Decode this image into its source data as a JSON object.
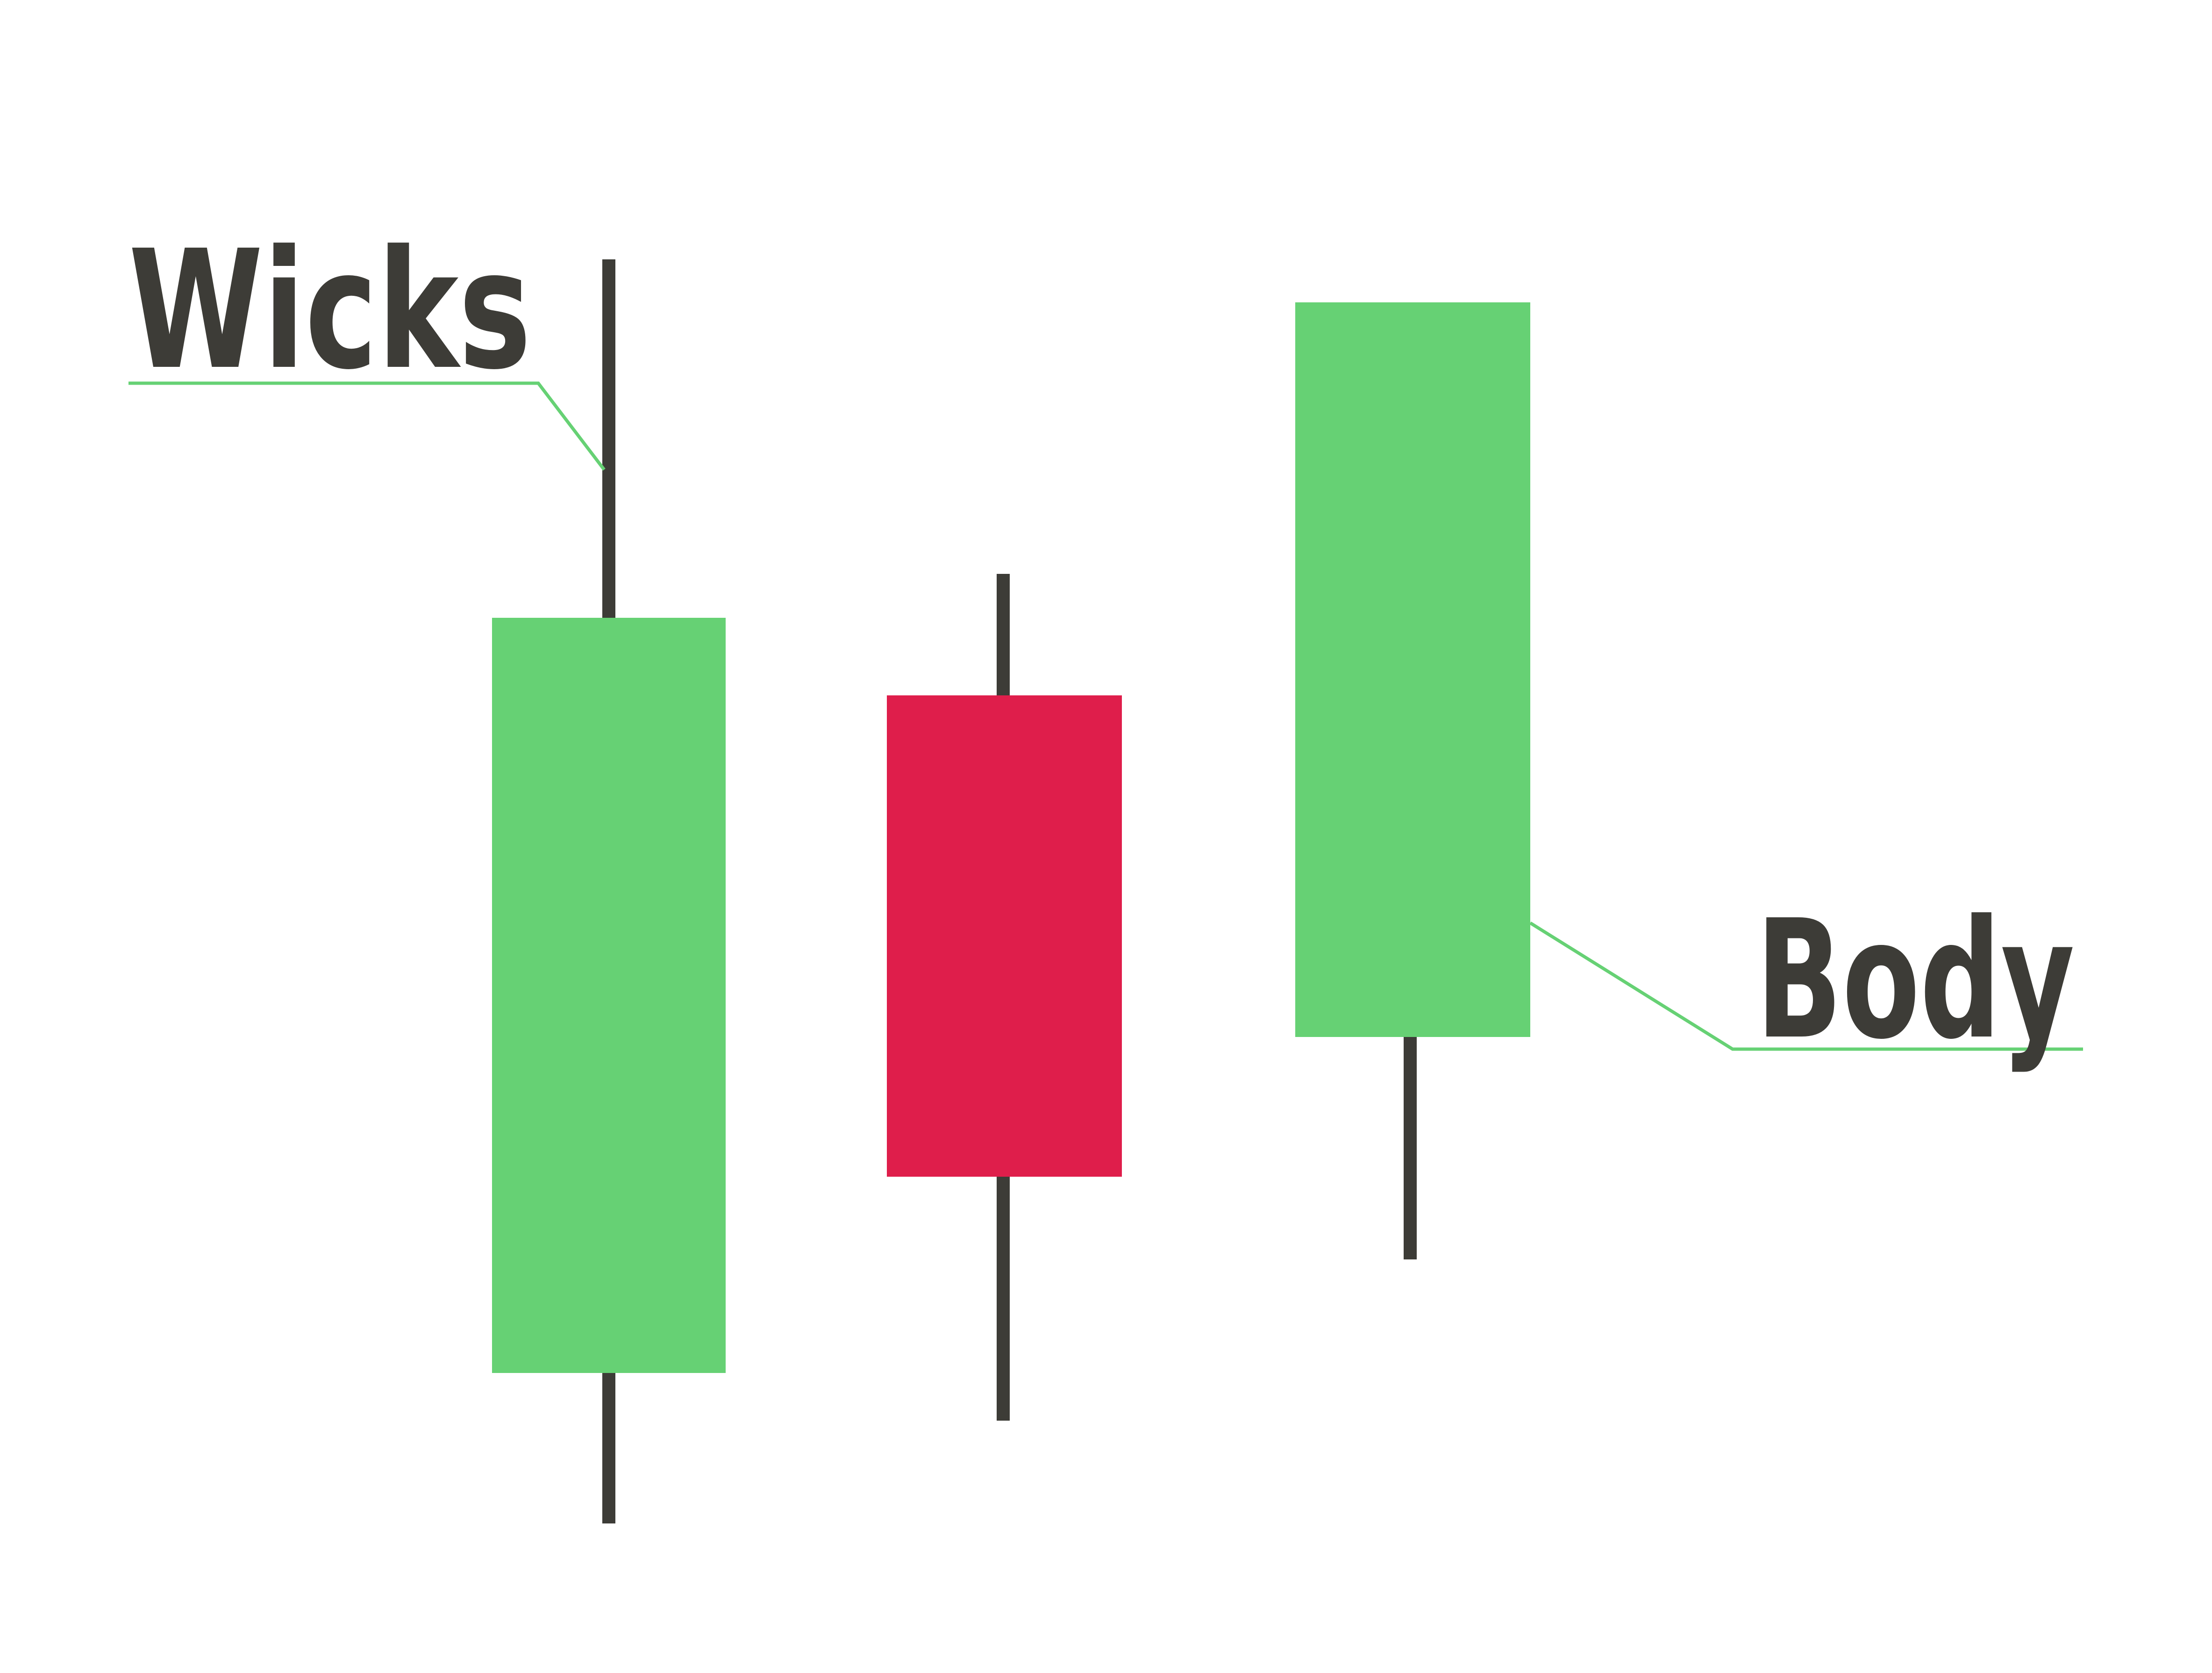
{
  "labels": {
    "wicks": "Wicks",
    "body": "Body"
  },
  "colors": {
    "bullish": "#66d174",
    "bearish": "#df1e4b",
    "wick": "#3d3c37",
    "text": "#3d3c37",
    "callout_line": "#66d174",
    "background": "#ffffff"
  },
  "candles": [
    {
      "name": "candle-1",
      "direction": "bullish"
    },
    {
      "name": "candle-2",
      "direction": "bearish"
    },
    {
      "name": "candle-3",
      "direction": "bullish"
    }
  ]
}
